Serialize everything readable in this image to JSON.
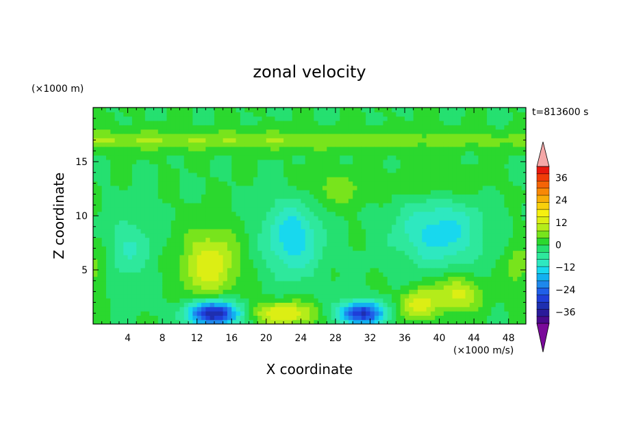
{
  "chart_data": {
    "type": "heatmap",
    "title": "zonal velocity",
    "time_label": "t=813600 s",
    "xlabel": "X coordinate",
    "ylabel": "Z coordinate",
    "y_unit_label": "(×1000 m)",
    "colorbar_unit_label": "(×1000 m/s)",
    "xlim": [
      0,
      50
    ],
    "ylim": [
      0,
      20
    ],
    "x_ticks": [
      "4",
      "8",
      "12",
      "16",
      "20",
      "24",
      "28",
      "32",
      "36",
      "40",
      "44",
      "48"
    ],
    "y_ticks": [
      "5",
      "10",
      "15"
    ],
    "colorbar": {
      "range": [
        -42,
        42
      ],
      "step": 4,
      "tick_labels": [
        "36",
        "24",
        "12",
        "0",
        "−12",
        "−24",
        "−36"
      ],
      "extend": "both",
      "colors": [
        "#4a0a8c",
        "#2a1a9a",
        "#1e2fb0",
        "#1f3ed8",
        "#1f5fe8",
        "#1e88ec",
        "#12b0f0",
        "#18d8ee",
        "#2ee8c0",
        "#2ee89c",
        "#25e070",
        "#2bd82e",
        "#78e41c",
        "#b4ec1a",
        "#dcee14",
        "#f6f010",
        "#f8d00c",
        "#f8ae08",
        "#f88806",
        "#f46406",
        "#f03c08",
        "#e8180e"
      ],
      "under_color": "#7a0a9a",
      "over_color": "#f5a8a8"
    },
    "features": [
      {
        "x": 6,
        "z": 17,
        "sx": 60,
        "sz": 0.9,
        "a": 8
      },
      {
        "x": 13.5,
        "z": 5.5,
        "sx": 3.2,
        "sz": 3.2,
        "a": 15
      },
      {
        "x": 14,
        "z": 1,
        "sx": 3,
        "sz": 1.2,
        "a": -38
      },
      {
        "x": 22,
        "z": 1,
        "sx": 4,
        "sz": 1.1,
        "a": 16
      },
      {
        "x": 23,
        "z": 8,
        "sx": 3.3,
        "sz": 3.5,
        "a": -15
      },
      {
        "x": 31,
        "z": 1,
        "sx": 2.8,
        "sz": 1.1,
        "a": -32
      },
      {
        "x": 37.5,
        "z": 1.8,
        "sx": 2.2,
        "sz": 1.4,
        "a": 14
      },
      {
        "x": 42,
        "z": 2.8,
        "sx": 2.8,
        "sz": 1.6,
        "a": 14
      },
      {
        "x": 40,
        "z": 8.5,
        "sx": 5,
        "sz": 3.2,
        "a": -14
      },
      {
        "x": 0.5,
        "z": 5.5,
        "sx": 1.4,
        "sz": 2.5,
        "a": 6
      },
      {
        "x": 49,
        "z": 5.5,
        "sx": 1.6,
        "sz": 2.5,
        "a": 6
      },
      {
        "x": 4,
        "z": 7,
        "sx": 3,
        "sz": 3,
        "a": -8
      },
      {
        "x": 28,
        "z": 12.5,
        "sx": 4,
        "sz": 1.8,
        "a": 6
      },
      {
        "x": 40,
        "z": 13,
        "sx": 5,
        "sz": 1.5,
        "a": 5
      }
    ]
  }
}
